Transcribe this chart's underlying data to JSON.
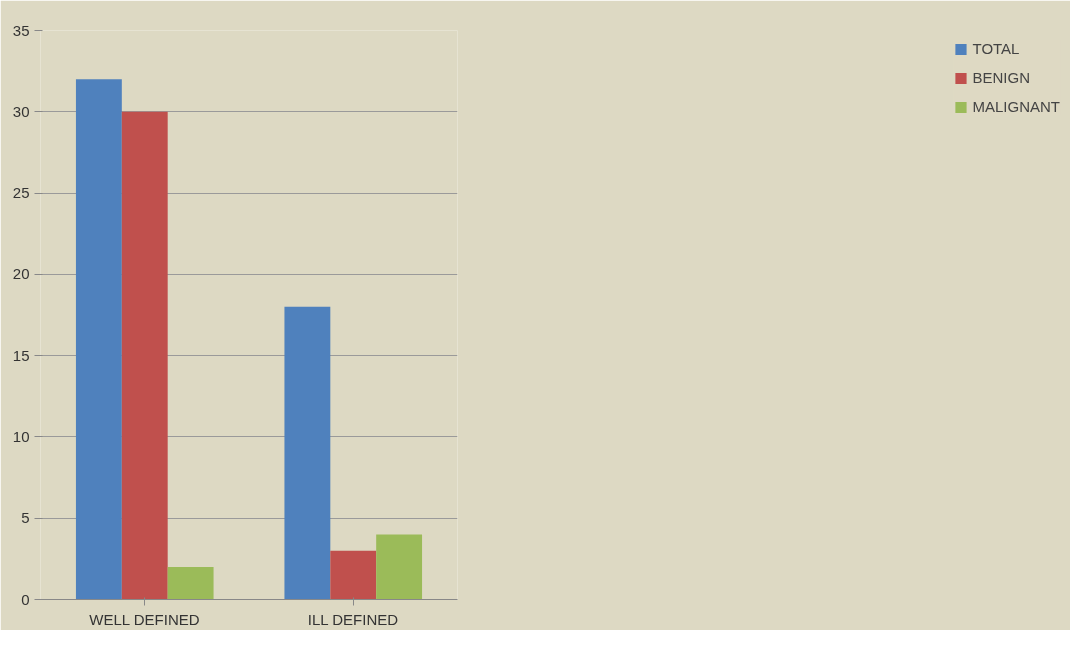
{
  "chart_data": {
    "type": "bar",
    "categories": [
      "WELL DEFINED",
      "ILL DEFINED"
    ],
    "series": [
      {
        "name": "TOTAL",
        "color": "#4f81bd",
        "values": [
          32,
          18
        ]
      },
      {
        "name": "BENIGN",
        "color": "#c0504d",
        "values": [
          30,
          3
        ]
      },
      {
        "name": "MALIGNANT",
        "color": "#9bbb59",
        "values": [
          2,
          4
        ]
      }
    ],
    "ylim": [
      0,
      35
    ],
    "yticks": [
      0,
      5,
      10,
      15,
      20,
      25,
      30,
      35
    ],
    "grid": "y",
    "legend": "right"
  }
}
